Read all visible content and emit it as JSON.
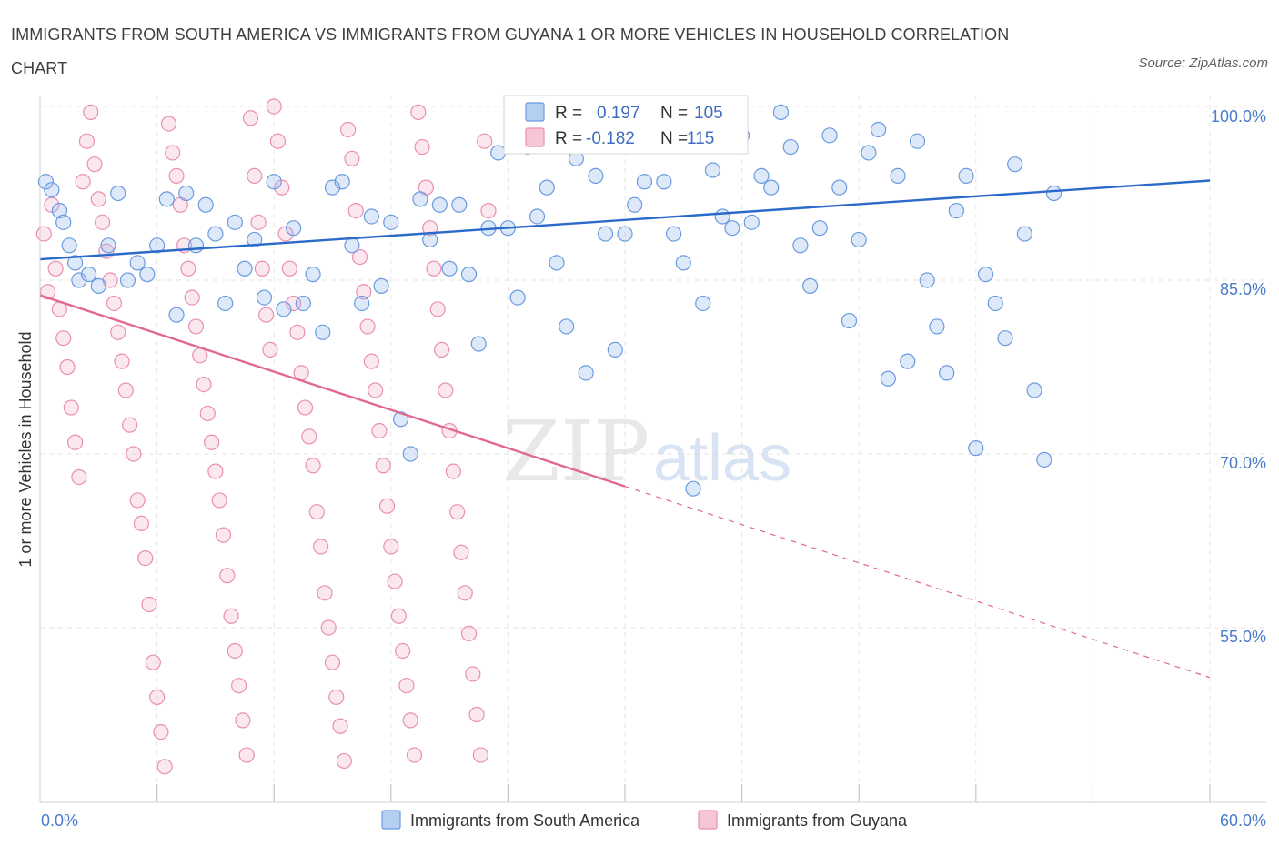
{
  "title": "IMMIGRANTS FROM SOUTH AMERICA VS IMMIGRANTS FROM GUYANA 1 OR MORE VEHICLES IN HOUSEHOLD CORRELATION CHART",
  "source": "Source: ZipAtlas.com",
  "watermark": {
    "zip": "ZIP",
    "atlas": "atlas"
  },
  "legend_box": {
    "rows": [
      {
        "r_label": "R =",
        "r_value": "0.197",
        "n_label": "N =",
        "n_value": "105"
      },
      {
        "r_label": "R =",
        "r_value": "-0.182",
        "n_label": "N =",
        "n_value": "115"
      }
    ]
  },
  "bottom_legend": [
    {
      "label": "Immigrants from South America"
    },
    {
      "label": "Immigrants from Guyana"
    }
  ],
  "chart_data": {
    "type": "scatter",
    "title": "IMMIGRANTS FROM SOUTH AMERICA VS IMMIGRANTS FROM GUYANA 1 OR MORE VEHICLES IN HOUSEHOLD CORRELATION CHART",
    "xlabel": "",
    "ylabel": "1 or more Vehicles in Household",
    "xlim": [
      0,
      60
    ],
    "ylim": [
      40,
      100
    ],
    "x_tick_labels": [
      "0.0%",
      "60.0%"
    ],
    "y_ticks": [
      100,
      85,
      70,
      55
    ],
    "y_tick_labels": [
      "100.0%",
      "85.0%",
      "70.0%",
      "55.0%"
    ],
    "grid": true,
    "legend_placement": "bottom",
    "colors": {
      "south_america": "#6a9be0",
      "guyana": "#ea8fb0",
      "sa_line": "#2b6ac9",
      "gy_line": "#e06893"
    },
    "series": [
      {
        "name": "Immigrants from South America",
        "color": "#6a9be0",
        "R": 0.197,
        "N": 105,
        "trend": {
          "x": [
            0,
            60
          ],
          "y": [
            86.8,
            93.6
          ]
        },
        "points": [
          [
            0.3,
            93.5
          ],
          [
            0.6,
            92.8
          ],
          [
            1.0,
            91.0
          ],
          [
            1.2,
            90.0
          ],
          [
            1.5,
            88.0
          ],
          [
            1.8,
            86.5
          ],
          [
            2.0,
            85.0
          ],
          [
            2.5,
            85.5
          ],
          [
            3.0,
            84.5
          ],
          [
            3.5,
            88.0
          ],
          [
            4.0,
            92.5
          ],
          [
            4.5,
            85.0
          ],
          [
            5.0,
            86.5
          ],
          [
            5.5,
            85.5
          ],
          [
            6.0,
            88.0
          ],
          [
            6.5,
            92.0
          ],
          [
            7.0,
            82.0
          ],
          [
            7.5,
            92.5
          ],
          [
            8.0,
            88.0
          ],
          [
            8.5,
            91.5
          ],
          [
            9.0,
            89.0
          ],
          [
            9.5,
            83.0
          ],
          [
            10.0,
            90.0
          ],
          [
            10.5,
            86.0
          ],
          [
            11.0,
            88.5
          ],
          [
            11.5,
            83.5
          ],
          [
            12.0,
            93.5
          ],
          [
            12.5,
            82.5
          ],
          [
            13.0,
            89.5
          ],
          [
            13.5,
            83.0
          ],
          [
            14.0,
            85.5
          ],
          [
            14.5,
            80.5
          ],
          [
            15.0,
            93.0
          ],
          [
            15.5,
            93.5
          ],
          [
            16.0,
            88.0
          ],
          [
            16.5,
            83.0
          ],
          [
            17.0,
            90.5
          ],
          [
            17.5,
            84.5
          ],
          [
            18.0,
            90.0
          ],
          [
            18.5,
            73.0
          ],
          [
            19.0,
            70.0
          ],
          [
            19.5,
            92.0
          ],
          [
            20.0,
            88.5
          ],
          [
            20.5,
            91.5
          ],
          [
            21.0,
            86.0
          ],
          [
            21.5,
            91.5
          ],
          [
            22.0,
            85.5
          ],
          [
            22.5,
            79.5
          ],
          [
            23.0,
            89.5
          ],
          [
            23.5,
            96.0
          ],
          [
            24.0,
            89.5
          ],
          [
            24.5,
            83.5
          ],
          [
            25.0,
            96.5
          ],
          [
            25.5,
            90.5
          ],
          [
            26.0,
            93.0
          ],
          [
            26.5,
            86.5
          ],
          [
            27.0,
            81.0
          ],
          [
            27.5,
            95.5
          ],
          [
            28.0,
            77.0
          ],
          [
            28.5,
            94.0
          ],
          [
            29.0,
            89.0
          ],
          [
            29.5,
            79.0
          ],
          [
            30.0,
            89.0
          ],
          [
            30.5,
            91.5
          ],
          [
            31.0,
            93.5
          ],
          [
            31.5,
            100.0
          ],
          [
            32.0,
            93.5
          ],
          [
            32.5,
            89.0
          ],
          [
            33.0,
            86.5
          ],
          [
            33.5,
            67.0
          ],
          [
            34.0,
            83.0
          ],
          [
            34.5,
            94.5
          ],
          [
            35.0,
            90.5
          ],
          [
            35.5,
            89.5
          ],
          [
            36.0,
            97.5
          ],
          [
            36.5,
            90.0
          ],
          [
            37.0,
            94.0
          ],
          [
            37.5,
            93.0
          ],
          [
            38.0,
            99.5
          ],
          [
            38.5,
            96.5
          ],
          [
            39.0,
            88.0
          ],
          [
            39.5,
            84.5
          ],
          [
            40.0,
            89.5
          ],
          [
            40.5,
            97.5
          ],
          [
            41.0,
            93.0
          ],
          [
            41.5,
            81.5
          ],
          [
            42.0,
            88.5
          ],
          [
            42.5,
            96.0
          ],
          [
            43.0,
            98.0
          ],
          [
            43.5,
            76.5
          ],
          [
            44.0,
            94.0
          ],
          [
            44.5,
            78.0
          ],
          [
            45.0,
            97.0
          ],
          [
            45.5,
            85.0
          ],
          [
            46.0,
            81.0
          ],
          [
            46.5,
            77.0
          ],
          [
            47.0,
            91.0
          ],
          [
            47.5,
            94.0
          ],
          [
            48.0,
            70.5
          ],
          [
            48.5,
            85.5
          ],
          [
            49.0,
            83.0
          ],
          [
            49.5,
            80.0
          ],
          [
            50.0,
            95.0
          ],
          [
            50.5,
            89.0
          ],
          [
            51.0,
            75.5
          ],
          [
            51.5,
            69.5
          ],
          [
            52.0,
            92.5
          ]
        ]
      },
      {
        "name": "Immigrants from Guyana",
        "color": "#ea8fb0",
        "R": -0.182,
        "N": 115,
        "trend": {
          "x": [
            0,
            30
          ],
          "y": [
            83.7,
            67.2
          ]
        },
        "trend_dashed": {
          "x": [
            30,
            60
          ],
          "y": [
            67.2,
            50.7
          ]
        },
        "points": [
          [
            0.2,
            89.0
          ],
          [
            0.4,
            84.0
          ],
          [
            0.6,
            91.5
          ],
          [
            0.8,
            86.0
          ],
          [
            1.0,
            82.5
          ],
          [
            1.2,
            80.0
          ],
          [
            1.4,
            77.5
          ],
          [
            1.6,
            74.0
          ],
          [
            1.8,
            71.0
          ],
          [
            2.0,
            68.0
          ],
          [
            2.2,
            93.5
          ],
          [
            2.4,
            97.0
          ],
          [
            2.6,
            99.5
          ],
          [
            2.8,
            95.0
          ],
          [
            3.0,
            92.0
          ],
          [
            3.2,
            90.0
          ],
          [
            3.4,
            87.5
          ],
          [
            3.6,
            85.0
          ],
          [
            3.8,
            83.0
          ],
          [
            4.0,
            80.5
          ],
          [
            4.2,
            78.0
          ],
          [
            4.4,
            75.5
          ],
          [
            4.6,
            72.5
          ],
          [
            4.8,
            70.0
          ],
          [
            5.0,
            66.0
          ],
          [
            5.2,
            64.0
          ],
          [
            5.4,
            61.0
          ],
          [
            5.6,
            57.0
          ],
          [
            5.8,
            52.0
          ],
          [
            6.0,
            49.0
          ],
          [
            6.2,
            46.0
          ],
          [
            6.4,
            43.0
          ],
          [
            6.6,
            98.5
          ],
          [
            6.8,
            96.0
          ],
          [
            7.0,
            94.0
          ],
          [
            7.2,
            91.5
          ],
          [
            7.4,
            88.0
          ],
          [
            7.6,
            86.0
          ],
          [
            7.8,
            83.5
          ],
          [
            8.0,
            81.0
          ],
          [
            8.2,
            78.5
          ],
          [
            8.4,
            76.0
          ],
          [
            8.6,
            73.5
          ],
          [
            8.8,
            71.0
          ],
          [
            9.0,
            68.5
          ],
          [
            9.2,
            66.0
          ],
          [
            9.4,
            63.0
          ],
          [
            9.6,
            59.5
          ],
          [
            9.8,
            56.0
          ],
          [
            10.0,
            53.0
          ],
          [
            10.2,
            50.0
          ],
          [
            10.4,
            47.0
          ],
          [
            10.6,
            44.0
          ],
          [
            10.8,
            99.0
          ],
          [
            11.0,
            94.0
          ],
          [
            11.2,
            90.0
          ],
          [
            11.4,
            86.0
          ],
          [
            11.6,
            82.0
          ],
          [
            11.8,
            79.0
          ],
          [
            12.0,
            100.0
          ],
          [
            12.2,
            97.0
          ],
          [
            12.4,
            93.0
          ],
          [
            12.6,
            89.0
          ],
          [
            12.8,
            86.0
          ],
          [
            13.0,
            83.0
          ],
          [
            13.2,
            80.5
          ],
          [
            13.4,
            77.0
          ],
          [
            13.6,
            74.0
          ],
          [
            13.8,
            71.5
          ],
          [
            14.0,
            69.0
          ],
          [
            14.2,
            65.0
          ],
          [
            14.4,
            62.0
          ],
          [
            14.6,
            58.0
          ],
          [
            14.8,
            55.0
          ],
          [
            15.0,
            52.0
          ],
          [
            15.2,
            49.0
          ],
          [
            15.4,
            46.5
          ],
          [
            15.6,
            43.5
          ],
          [
            15.8,
            98.0
          ],
          [
            16.0,
            95.5
          ],
          [
            16.2,
            91.0
          ],
          [
            16.4,
            87.0
          ],
          [
            16.6,
            84.0
          ],
          [
            16.8,
            81.0
          ],
          [
            17.0,
            78.0
          ],
          [
            17.2,
            75.5
          ],
          [
            17.4,
            72.0
          ],
          [
            17.6,
            69.0
          ],
          [
            17.8,
            65.5
          ],
          [
            18.0,
            62.0
          ],
          [
            18.2,
            59.0
          ],
          [
            18.4,
            56.0
          ],
          [
            18.6,
            53.0
          ],
          [
            18.8,
            50.0
          ],
          [
            19.0,
            47.0
          ],
          [
            19.2,
            44.0
          ],
          [
            19.4,
            99.5
          ],
          [
            19.6,
            96.5
          ],
          [
            19.8,
            93.0
          ],
          [
            20.0,
            89.5
          ],
          [
            20.2,
            86.0
          ],
          [
            20.4,
            82.5
          ],
          [
            20.6,
            79.0
          ],
          [
            20.8,
            75.5
          ],
          [
            21.0,
            72.0
          ],
          [
            21.2,
            68.5
          ],
          [
            21.4,
            65.0
          ],
          [
            21.6,
            61.5
          ],
          [
            21.8,
            58.0
          ],
          [
            22.0,
            54.5
          ],
          [
            22.2,
            51.0
          ],
          [
            22.4,
            47.5
          ],
          [
            22.6,
            44.0
          ],
          [
            22.8,
            97.0
          ],
          [
            23.0,
            91.0
          ]
        ]
      }
    ]
  }
}
